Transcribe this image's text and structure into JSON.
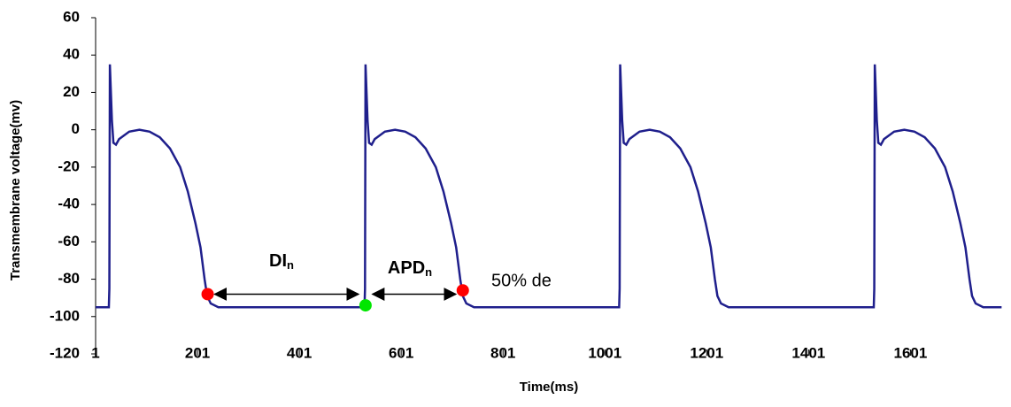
{
  "chart_data": {
    "type": "line",
    "x_label": "Time(ms)",
    "y_label": "Transmembrane voltage(mv)",
    "xlim": [
      1,
      1795
    ],
    "ylim": [
      -120,
      60
    ],
    "xticks": [
      1,
      201,
      401,
      601,
      801,
      1001,
      1201,
      1401,
      1601
    ],
    "yticks": [
      60,
      40,
      20,
      0,
      -20,
      -40,
      -60,
      -80,
      -100,
      -120
    ],
    "grid": false,
    "series": [
      {
        "color": "#1f1f8c",
        "x": [
          1,
          27,
          28,
          29,
          31,
          33,
          36,
          41,
          47,
          67,
          87,
          107,
          127,
          147,
          167,
          182,
          197,
          207,
          215,
          220,
          227,
          242,
          529,
          530,
          531,
          533,
          535,
          538,
          543,
          549,
          569,
          589,
          609,
          629,
          649,
          669,
          684,
          699,
          709,
          717,
          722,
          729,
          744,
          1029,
          1030,
          1031,
          1033,
          1035,
          1038,
          1043,
          1049,
          1069,
          1089,
          1109,
          1129,
          1149,
          1169,
          1184,
          1199,
          1209,
          1217,
          1222,
          1229,
          1244,
          1529,
          1530,
          1531,
          1533,
          1535,
          1538,
          1543,
          1549,
          1569,
          1589,
          1609,
          1629,
          1649,
          1669,
          1684,
          1699,
          1709,
          1717,
          1722,
          1729,
          1744,
          1780
        ],
        "values": [
          -95,
          -95,
          -85,
          35,
          20,
          5,
          -7,
          -8,
          -5,
          -1,
          0,
          -1,
          -4,
          -10,
          -20,
          -33,
          -50,
          -63,
          -80,
          -89,
          -93,
          -95,
          -95,
          -85,
          35,
          20,
          5,
          -7,
          -8,
          -5,
          -1,
          0,
          -1,
          -4,
          -10,
          -20,
          -33,
          -50,
          -63,
          -80,
          -89,
          -93,
          -95,
          -95,
          -85,
          35,
          20,
          5,
          -7,
          -8,
          -5,
          -1,
          0,
          -1,
          -4,
          -10,
          -20,
          -33,
          -50,
          -63,
          -80,
          -89,
          -93,
          -95,
          -95,
          -85,
          35,
          20,
          5,
          -7,
          -8,
          -5,
          -1,
          0,
          -1,
          -4,
          -10,
          -20,
          -33,
          -50,
          -63,
          -80,
          -89,
          -93,
          -95,
          -95
        ]
      }
    ],
    "markers": [
      {
        "x": 221,
        "y": -88,
        "color": "#ff0000"
      },
      {
        "x": 531,
        "y": -94,
        "color": "#00e600"
      },
      {
        "x": 722,
        "y": -86,
        "color": "#ff0000"
      }
    ],
    "annotations": [
      {
        "text": "DI",
        "sub": "n"
      },
      {
        "text": "APD",
        "sub": "n"
      },
      {
        "text": "50% de"
      }
    ]
  }
}
